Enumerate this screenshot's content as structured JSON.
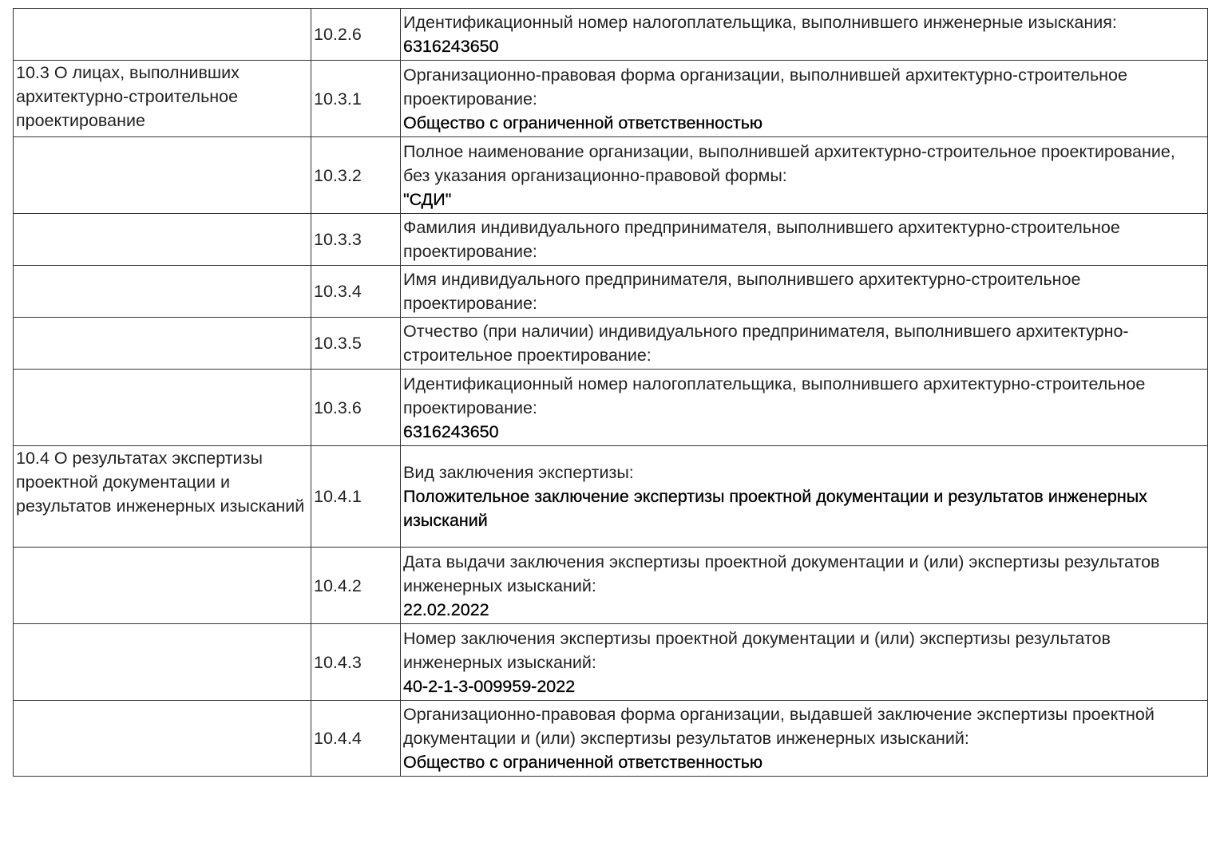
{
  "table": {
    "rows": [
      {
        "code": "10.2.6",
        "label": "Идентификационный номер налогоплательщика, выполнившего инженерные изыскания:",
        "value": "6316243650"
      },
      {
        "section": "10.3 О лицах, выполнивших архитектурно-строительное проектирование",
        "code": "10.3.1",
        "label": "Организационно-правовая форма организации, выполнившей архитектурно-строительное проектирование:",
        "value": "Общество с ограниченной ответственностью"
      },
      {
        "code": "10.3.2",
        "label": "Полное наименование организации, выполнившей архитектурно-строительное проектирование, без указания организационно-правовой формы:",
        "value": "\"СДИ\""
      },
      {
        "code": "10.3.3",
        "label": "Фамилия индивидуального предпринимателя, выполнившего архитектурно-строительное проектирование:"
      },
      {
        "code": "10.3.4",
        "label": "Имя индивидуального предпринимателя, выполнившего архитектурно-строительное проектирование:"
      },
      {
        "code": "10.3.5",
        "label": "Отчество (при наличии) индивидуального предпринимателя, выполнившего архитектурно-строительное проектирование:"
      },
      {
        "code": "10.3.6",
        "label": "Идентификационный номер налогоплательщика, выполнившего архитектурно-строительное проектирование:",
        "value": "6316243650"
      },
      {
        "section": "10.4 О результатах экспертизы проектной документации и результатов инженерных изысканий",
        "code": "10.4.1",
        "label": "Вид заключения экспертизы:",
        "value": "Положительное заключение экспертизы проектной документации и результатов инженерных изысканий"
      },
      {
        "code": "10.4.2",
        "label": "Дата выдачи заключения экспертизы проектной документации и (или) экспертизы результатов инженерных изысканий:",
        "value": "22.02.2022"
      },
      {
        "code": "10.4.3",
        "label": "Номер заключения экспертизы проектной документации и (или) экспертизы результатов инженерных изысканий:",
        "value": "40-2-1-3-009959-2022"
      },
      {
        "code": "10.4.4",
        "label": "Организационно-правовая форма организации, выдавшей заключение экспертизы проектной документации и (или) экспертизы результатов инженерных изысканий:",
        "value": "Общество с ограниченной ответственностью"
      }
    ]
  }
}
